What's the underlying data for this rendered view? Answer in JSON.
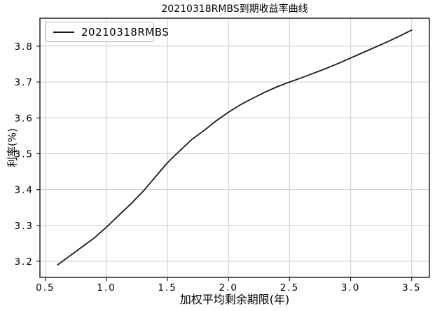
{
  "figure": {
    "background": "#ffffff"
  },
  "chart_data": {
    "type": "line",
    "title": "20210318RMBS到期收益率曲线",
    "xlabel": "加权平均剩余期限(年)",
    "ylabel": "利率(%)",
    "legend": {
      "position": "upper-left",
      "entries": [
        "20210318RMBS"
      ]
    },
    "series": [
      {
        "name": "20210318RMBS",
        "color": "#1a1a1a",
        "x": [
          0.6,
          0.7,
          0.8,
          0.9,
          1.0,
          1.1,
          1.2,
          1.3,
          1.4,
          1.5,
          1.6,
          1.7,
          1.8,
          1.9,
          2.0,
          2.1,
          2.2,
          2.3,
          2.4,
          2.5,
          2.6,
          2.7,
          2.8,
          2.9,
          3.0,
          3.1,
          3.2,
          3.3,
          3.4,
          3.5
        ],
        "y": [
          3.19,
          3.215,
          3.24,
          3.265,
          3.295,
          3.328,
          3.36,
          3.395,
          3.435,
          3.475,
          3.508,
          3.54,
          3.565,
          3.592,
          3.616,
          3.637,
          3.655,
          3.672,
          3.687,
          3.7,
          3.712,
          3.725,
          3.738,
          3.752,
          3.767,
          3.782,
          3.797,
          3.812,
          3.828,
          3.845
        ]
      }
    ],
    "xlim": [
      0.455,
      3.645
    ],
    "ylim": [
      3.155,
      3.878
    ],
    "xticks": [
      0.5,
      1.0,
      1.5,
      2.0,
      2.5,
      3.0,
      3.5
    ],
    "xtick_labels": [
      "0.5",
      "1.0",
      "1.5",
      "2.0",
      "2.5",
      "3.0",
      "3.5"
    ],
    "yticks": [
      3.2,
      3.3,
      3.4,
      3.5,
      3.6,
      3.7,
      3.8
    ],
    "ytick_labels": [
      "3.2",
      "3.3",
      "3.4",
      "3.5",
      "3.6",
      "3.7",
      "3.8"
    ],
    "grid": true,
    "grid_color": "#cccccc",
    "spine_color": "#262626",
    "tick_color": "#262626",
    "text_color": "#000000"
  }
}
